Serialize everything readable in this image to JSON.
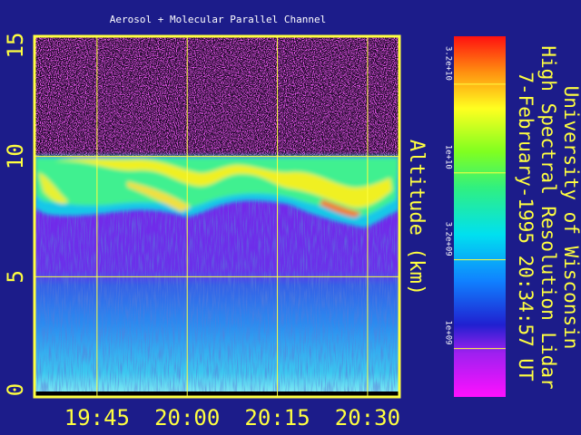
{
  "chart_data": {
    "type": "image",
    "title": "Aerosol + Molecular Parallel Channel",
    "ylabel": "Altitude (km)",
    "ylim": [
      0,
      15
    ],
    "yticks": [
      0,
      5,
      10,
      15
    ],
    "xlim": [
      1174.6,
      1235.3
    ],
    "xticks": [
      {
        "value": 1185,
        "label": "19:45"
      },
      {
        "value": 1200,
        "label": "20:00"
      },
      {
        "value": 1215,
        "label": "20:15"
      },
      {
        "value": 1230,
        "label": "20:30"
      }
    ],
    "grid": true,
    "frame_color": "#ffff40",
    "colorbar": {
      "scale": "log",
      "lim": [
        530000000,
        60000000000
      ],
      "ticks": [
        {
          "value": 1000000000,
          "label": "1e+09"
        },
        {
          "value": 3200000000,
          "label": "3.2e+09"
        },
        {
          "value": 10000000000,
          "label": "1e+10"
        },
        {
          "value": 32000000000,
          "label": "3.2e+10"
        }
      ]
    },
    "annotations": [
      "University of Wisconsin",
      "High Spectral Resolution Lidar",
      "7-February-1995 20:34:57 UT"
    ]
  }
}
